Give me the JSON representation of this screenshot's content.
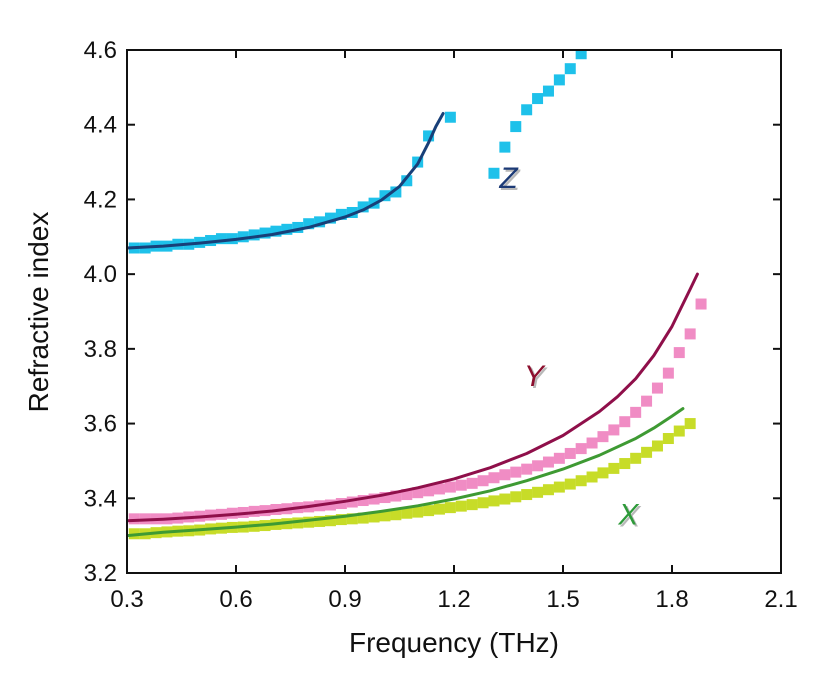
{
  "chart_data": {
    "type": "scatter",
    "xlabel": "Frequency (THz)",
    "ylabel": "Refractive index",
    "xlim": [
      0.3,
      2.1
    ],
    "ylim": [
      3.2,
      4.6
    ],
    "xticks": [
      "0.3",
      "0.6",
      "0.9",
      "1.2",
      "1.5",
      "1.8",
      "2.1"
    ],
    "yticks": [
      "3.2",
      "3.4",
      "3.6",
      "3.8",
      "4.0",
      "4.2",
      "4.4",
      "4.6"
    ],
    "grid": false,
    "series": [
      {
        "name": "Z",
        "marker_color": "#1ec1ea",
        "fit_color": "#183f78",
        "label_color": "#1c3a76",
        "label_x": 1.35,
        "label_y": 4.23,
        "points": [
          [
            0.32,
            4.07
          ],
          [
            0.35,
            4.07
          ],
          [
            0.38,
            4.075
          ],
          [
            0.41,
            4.075
          ],
          [
            0.44,
            4.08
          ],
          [
            0.47,
            4.08
          ],
          [
            0.5,
            4.085
          ],
          [
            0.53,
            4.09
          ],
          [
            0.56,
            4.095
          ],
          [
            0.59,
            4.095
          ],
          [
            0.62,
            4.1
          ],
          [
            0.65,
            4.105
          ],
          [
            0.68,
            4.11
          ],
          [
            0.71,
            4.115
          ],
          [
            0.74,
            4.12
          ],
          [
            0.77,
            4.125
          ],
          [
            0.8,
            4.135
          ],
          [
            0.83,
            4.14
          ],
          [
            0.86,
            4.15
          ],
          [
            0.89,
            4.16
          ],
          [
            0.92,
            4.165
          ],
          [
            0.95,
            4.18
          ],
          [
            0.98,
            4.19
          ],
          [
            1.01,
            4.21
          ],
          [
            1.04,
            4.22
          ],
          [
            1.07,
            4.25
          ],
          [
            1.1,
            4.3
          ],
          [
            1.13,
            4.37
          ],
          [
            1.19,
            4.42
          ],
          [
            1.31,
            4.27
          ],
          [
            1.34,
            4.34
          ],
          [
            1.37,
            4.395
          ],
          [
            1.4,
            4.44
          ],
          [
            1.43,
            4.47
          ],
          [
            1.46,
            4.49
          ],
          [
            1.49,
            4.52
          ],
          [
            1.52,
            4.55
          ],
          [
            1.55,
            4.59
          ]
        ],
        "fit": [
          [
            0.3,
            4.07
          ],
          [
            0.4,
            4.075
          ],
          [
            0.5,
            4.083
          ],
          [
            0.6,
            4.093
          ],
          [
            0.7,
            4.106
          ],
          [
            0.8,
            4.125
          ],
          [
            0.9,
            4.153
          ],
          [
            0.95,
            4.172
          ],
          [
            1.0,
            4.198
          ],
          [
            1.05,
            4.235
          ],
          [
            1.1,
            4.295
          ],
          [
            1.13,
            4.352
          ],
          [
            1.15,
            4.395
          ],
          [
            1.17,
            4.43
          ]
        ]
      },
      {
        "name": "Y",
        "marker_color": "#f08cc4",
        "fit_color": "#8f0f4a",
        "label_color": "#8c0f2e",
        "label_x": 1.42,
        "label_y": 3.7,
        "points": [
          [
            0.32,
            3.345
          ],
          [
            0.35,
            3.345
          ],
          [
            0.38,
            3.345
          ],
          [
            0.41,
            3.345
          ],
          [
            0.44,
            3.347
          ],
          [
            0.47,
            3.35
          ],
          [
            0.5,
            3.352
          ],
          [
            0.53,
            3.355
          ],
          [
            0.56,
            3.357
          ],
          [
            0.59,
            3.36
          ],
          [
            0.62,
            3.362
          ],
          [
            0.65,
            3.365
          ],
          [
            0.68,
            3.367
          ],
          [
            0.71,
            3.37
          ],
          [
            0.74,
            3.372
          ],
          [
            0.77,
            3.375
          ],
          [
            0.8,
            3.377
          ],
          [
            0.83,
            3.38
          ],
          [
            0.86,
            3.382
          ],
          [
            0.89,
            3.386
          ],
          [
            0.92,
            3.39
          ],
          [
            0.95,
            3.394
          ],
          [
            0.98,
            3.398
          ],
          [
            1.01,
            3.402
          ],
          [
            1.04,
            3.406
          ],
          [
            1.07,
            3.41
          ],
          [
            1.1,
            3.415
          ],
          [
            1.13,
            3.42
          ],
          [
            1.16,
            3.425
          ],
          [
            1.19,
            3.43
          ],
          [
            1.22,
            3.435
          ],
          [
            1.25,
            3.44
          ],
          [
            1.28,
            3.447
          ],
          [
            1.31,
            3.455
          ],
          [
            1.34,
            3.463
          ],
          [
            1.37,
            3.47
          ],
          [
            1.4,
            3.478
          ],
          [
            1.43,
            3.487
          ],
          [
            1.46,
            3.497
          ],
          [
            1.49,
            3.507
          ],
          [
            1.52,
            3.52
          ],
          [
            1.55,
            3.533
          ],
          [
            1.58,
            3.548
          ],
          [
            1.61,
            3.565
          ],
          [
            1.64,
            3.583
          ],
          [
            1.67,
            3.605
          ],
          [
            1.7,
            3.63
          ],
          [
            1.73,
            3.66
          ],
          [
            1.76,
            3.695
          ],
          [
            1.79,
            3.735
          ],
          [
            1.82,
            3.79
          ],
          [
            1.85,
            3.84
          ],
          [
            1.88,
            3.92
          ]
        ],
        "fit": [
          [
            0.3,
            3.34
          ],
          [
            0.4,
            3.344
          ],
          [
            0.5,
            3.35
          ],
          [
            0.6,
            3.357
          ],
          [
            0.7,
            3.366
          ],
          [
            0.8,
            3.378
          ],
          [
            0.9,
            3.392
          ],
          [
            1.0,
            3.408
          ],
          [
            1.1,
            3.428
          ],
          [
            1.2,
            3.452
          ],
          [
            1.3,
            3.482
          ],
          [
            1.4,
            3.52
          ],
          [
            1.5,
            3.568
          ],
          [
            1.6,
            3.632
          ],
          [
            1.65,
            3.672
          ],
          [
            1.7,
            3.72
          ],
          [
            1.75,
            3.782
          ],
          [
            1.8,
            3.86
          ],
          [
            1.85,
            3.96
          ],
          [
            1.87,
            4.0
          ]
        ]
      },
      {
        "name": "X",
        "marker_color": "#c7dc28",
        "fit_color": "#3e9a33",
        "label_color": "#2e9a3a",
        "label_x": 1.68,
        "label_y": 3.33,
        "points": [
          [
            0.32,
            3.305
          ],
          [
            0.35,
            3.305
          ],
          [
            0.38,
            3.308
          ],
          [
            0.41,
            3.31
          ],
          [
            0.44,
            3.312
          ],
          [
            0.47,
            3.313
          ],
          [
            0.5,
            3.315
          ],
          [
            0.53,
            3.318
          ],
          [
            0.56,
            3.32
          ],
          [
            0.59,
            3.322
          ],
          [
            0.62,
            3.323
          ],
          [
            0.65,
            3.325
          ],
          [
            0.68,
            3.327
          ],
          [
            0.71,
            3.33
          ],
          [
            0.74,
            3.332
          ],
          [
            0.77,
            3.334
          ],
          [
            0.8,
            3.336
          ],
          [
            0.83,
            3.338
          ],
          [
            0.86,
            3.34
          ],
          [
            0.89,
            3.343
          ],
          [
            0.92,
            3.345
          ],
          [
            0.95,
            3.347
          ],
          [
            0.98,
            3.35
          ],
          [
            1.01,
            3.353
          ],
          [
            1.04,
            3.356
          ],
          [
            1.07,
            3.36
          ],
          [
            1.1,
            3.363
          ],
          [
            1.13,
            3.367
          ],
          [
            1.16,
            3.371
          ],
          [
            1.19,
            3.375
          ],
          [
            1.22,
            3.379
          ],
          [
            1.25,
            3.383
          ],
          [
            1.28,
            3.388
          ],
          [
            1.31,
            3.393
          ],
          [
            1.34,
            3.398
          ],
          [
            1.37,
            3.404
          ],
          [
            1.4,
            3.41
          ],
          [
            1.43,
            3.416
          ],
          [
            1.46,
            3.423
          ],
          [
            1.49,
            3.43
          ],
          [
            1.52,
            3.438
          ],
          [
            1.55,
            3.447
          ],
          [
            1.58,
            3.457
          ],
          [
            1.61,
            3.468
          ],
          [
            1.64,
            3.48
          ],
          [
            1.67,
            3.493
          ],
          [
            1.7,
            3.507
          ],
          [
            1.73,
            3.523
          ],
          [
            1.76,
            3.54
          ],
          [
            1.79,
            3.56
          ],
          [
            1.82,
            3.58
          ],
          [
            1.85,
            3.6
          ]
        ],
        "fit": [
          [
            0.3,
            3.3
          ],
          [
            0.4,
            3.309
          ],
          [
            0.5,
            3.316
          ],
          [
            0.6,
            3.323
          ],
          [
            0.7,
            3.331
          ],
          [
            0.8,
            3.341
          ],
          [
            0.9,
            3.352
          ],
          [
            1.0,
            3.365
          ],
          [
            1.1,
            3.38
          ],
          [
            1.2,
            3.398
          ],
          [
            1.3,
            3.42
          ],
          [
            1.4,
            3.447
          ],
          [
            1.5,
            3.478
          ],
          [
            1.6,
            3.515
          ],
          [
            1.7,
            3.56
          ],
          [
            1.75,
            3.588
          ],
          [
            1.8,
            3.62
          ],
          [
            1.83,
            3.64
          ]
        ]
      }
    ]
  }
}
